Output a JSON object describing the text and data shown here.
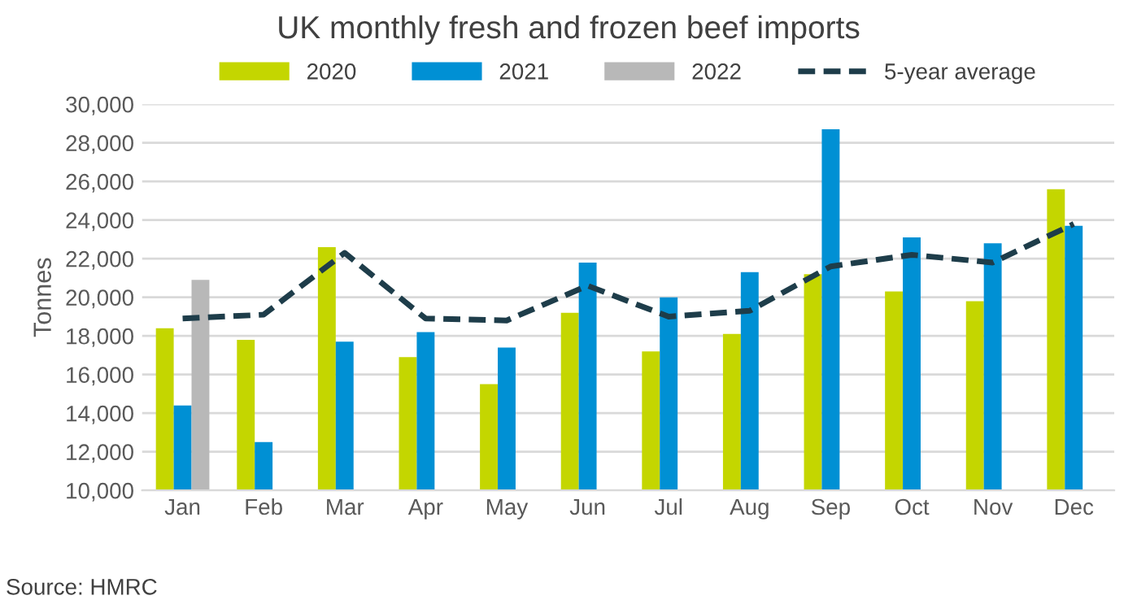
{
  "chart_data": {
    "type": "bar",
    "title": "UK monthly fresh and frozen beef imports",
    "ylabel": "Tonnes",
    "categories": [
      "Jan",
      "Feb",
      "Mar",
      "Apr",
      "May",
      "Jun",
      "Jul",
      "Aug",
      "Sep",
      "Oct",
      "Nov",
      "Dec"
    ],
    "series": [
      {
        "name": "2020",
        "color": "#c4d600",
        "values": [
          18400,
          17800,
          22600,
          16900,
          15500,
          19200,
          17200,
          18100,
          21200,
          20300,
          19800,
          25600
        ]
      },
      {
        "name": "2021",
        "color": "#0090d4",
        "values": [
          14400,
          12500,
          17700,
          18200,
          17400,
          21800,
          20000,
          21300,
          28700,
          23100,
          22800,
          23700
        ]
      },
      {
        "name": "2022",
        "color": "#b8b8b8",
        "values": [
          20900,
          null,
          null,
          null,
          null,
          null,
          null,
          null,
          null,
          null,
          null,
          null
        ]
      },
      {
        "name": "5-year average",
        "type": "line",
        "color": "#1e3d4a",
        "line_style": "dashed",
        "values": [
          18900,
          19100,
          22300,
          18900,
          18800,
          20600,
          19000,
          19300,
          21600,
          22200,
          21800,
          23800
        ]
      }
    ],
    "ylim": [
      10000,
      30000
    ],
    "yticks": [
      {
        "value": 10000,
        "label": "10,000"
      },
      {
        "value": 12000,
        "label": "12,000"
      },
      {
        "value": 14000,
        "label": "14,000"
      },
      {
        "value": 16000,
        "label": "16,000"
      },
      {
        "value": 18000,
        "label": "18,000"
      },
      {
        "value": 20000,
        "label": "20,000"
      },
      {
        "value": 22000,
        "label": "22,000"
      },
      {
        "value": 24000,
        "label": "24,000"
      },
      {
        "value": 26000,
        "label": "26,000"
      },
      {
        "value": 28000,
        "label": "28,000"
      },
      {
        "value": 30000,
        "label": "30,000"
      }
    ],
    "grid": "y",
    "legend": "top",
    "annotations": [
      "Source: HMRC"
    ]
  }
}
